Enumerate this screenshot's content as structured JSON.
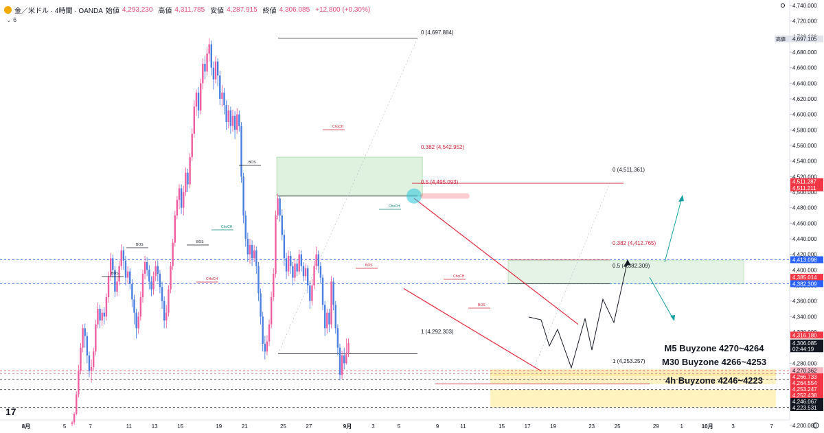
{
  "header": {
    "symbol": "金／米ドル · 4時間 · OANDA",
    "open_label": "始値",
    "open_value": "4,293.230",
    "high_label": "高値",
    "high_value": "4,311.785",
    "low_label": "安値",
    "low_value": "4,287.915",
    "close_label": "終値",
    "close_value": "4,306.085",
    "change": "+12.800 (+0.30%)",
    "sub_count": "6"
  },
  "logo_text": "17",
  "chart_data": {
    "type": "candlestick",
    "y_range": [
      4190,
      4745
    ],
    "price_ticks": [
      "4,740.000",
      "4,720.000",
      "4,700.000",
      "4,680.000",
      "4,660.000",
      "4,640.000",
      "4,620.000",
      "4,600.000",
      "4,580.000",
      "4,560.000",
      "4,540.000",
      "4,520.000",
      "4,500.000",
      "4,480.000",
      "4,460.000",
      "4,440.000",
      "4,420.000",
      "4,400.000",
      "4,380.000",
      "4,360.000",
      "4,340.000",
      "4,320.000",
      "4,300.000",
      "4,280.000",
      "4,200.000"
    ],
    "time_ticks": [
      {
        "label": "8月",
        "bar": 0
      },
      {
        "label": "5",
        "bar": 18
      },
      {
        "label": "7",
        "bar": 30
      },
      {
        "label": "11",
        "bar": 48
      },
      {
        "label": "13",
        "bar": 60
      },
      {
        "label": "15",
        "bar": 72
      },
      {
        "label": "19",
        "bar": 90
      },
      {
        "label": "21",
        "bar": 102
      },
      {
        "label": "25",
        "bar": 120
      },
      {
        "label": "27",
        "bar": 132
      },
      {
        "label": "9月",
        "bar": 150
      },
      {
        "label": "3",
        "bar": 162
      },
      {
        "label": "5",
        "bar": 174
      },
      {
        "label": "9",
        "bar": 192
      },
      {
        "label": "11",
        "bar": 204
      },
      {
        "label": "15",
        "bar": 222
      },
      {
        "label": "17",
        "bar": 234
      },
      {
        "label": "19",
        "bar": 246
      },
      {
        "label": "23",
        "bar": 264
      },
      {
        "label": "25",
        "bar": 276
      },
      {
        "label": "29",
        "bar": 294
      },
      {
        "label": "1",
        "bar": 306
      },
      {
        "label": "10月",
        "bar": 318
      },
      {
        "label": "3",
        "bar": 330
      },
      {
        "label": "7",
        "bar": 348
      }
    ],
    "price_tags": [
      {
        "label": "高値",
        "value": "4,697.105",
        "price": 4697.1,
        "bg": "#e0e3eb",
        "fg": "#131722"
      },
      {
        "value": "4,511.287",
        "price": 4513.5,
        "bg": "#f23645",
        "fg": "#ffffff"
      },
      {
        "value": "4,511.211",
        "price": 4505.5,
        "bg": "#f23645",
        "fg": "#ffffff"
      },
      {
        "value": "4,413.098",
        "price": 4413.1,
        "bg": "#2962ff",
        "fg": "#ffffff"
      },
      {
        "value": "4,400.000",
        "price": 4400,
        "bg": "#ffffff",
        "fg": "#131722"
      },
      {
        "value": "4,385.014",
        "price": 4390.5,
        "bg": "#f23645",
        "fg": "#ffffff"
      },
      {
        "value": "4,382.309",
        "price": 4382.3,
        "bg": "#2962ff",
        "fg": "#ffffff"
      },
      {
        "value": "4,316.180",
        "price": 4316.2,
        "bg": "#f23645",
        "fg": "#ffffff"
      },
      {
        "value": "4,306.085",
        "price": 4306.1,
        "bg": "#131722",
        "fg": "#ffffff"
      },
      {
        "value": "02:44:19",
        "price": 4298.6,
        "bg": "#131722",
        "fg": "#ffffff"
      },
      {
        "value": "4,270.362",
        "price": 4270.4,
        "bg": "#f7b8c4",
        "fg": "#131722"
      },
      {
        "value": "4,266.733",
        "price": 4262.5,
        "bg": "#f23645",
        "fg": "#ffffff"
      },
      {
        "value": "4,264.554",
        "price": 4254.6,
        "bg": "#f23645",
        "fg": "#ffffff"
      },
      {
        "value": "4,253.247",
        "price": 4246.6,
        "bg": "#f23645",
        "fg": "#ffffff"
      },
      {
        "value": "4,252.438",
        "price": 4238.7,
        "bg": "#f23645",
        "fg": "#ffffff"
      },
      {
        "value": "4,246.067",
        "price": 4230.8,
        "bg": "#131722",
        "fg": "#ffffff"
      },
      {
        "value": "4,223.531",
        "price": 4222.9,
        "bg": "#131722",
        "fg": "#ffffff"
      }
    ],
    "fib_labels": [
      {
        "text": "0 (4,697.884)",
        "bar": 118,
        "price": 4697.9
      },
      {
        "text": "0.382 (4,542.952)",
        "bar": 118,
        "price": 4542.95
      },
      {
        "text": "0.5 (4,495.093)",
        "bar": 118,
        "price": 4495.1
      },
      {
        "text": "1 (4,292.303)",
        "bar": 118,
        "price": 4292.3
      },
      {
        "text": "0 (4,511.361)",
        "bar": 278,
        "price": 4511.4
      },
      {
        "text": "0.382 (4,412.765)",
        "bar": 278,
        "price": 4412.8
      },
      {
        "text": "0.5 (4,382.309)",
        "bar": 278,
        "price": 4382.3
      },
      {
        "text": "1 (4,253.257)",
        "bar": 278,
        "price": 4253.3
      }
    ],
    "zone_labels": [
      "M5 Buyzone 4270~4264",
      "M30 Buyzone 4266~4253",
      "4h Buyzone 4246~4223"
    ],
    "structure_labels": [
      "BOS",
      "BOS",
      "ChoCH",
      "BOS",
      "BOS",
      "ChoCH",
      "ChoCH",
      "BOS",
      "ChoCH",
      "BOS",
      "CHoCH"
    ],
    "candles": [
      {
        "o": 4202,
        "c": 4204,
        "h": 4206,
        "l": 4199
      },
      {
        "o": 4204,
        "c": 4215,
        "h": 4217,
        "l": 4201
      },
      {
        "o": 4215,
        "c": 4240,
        "h": 4244,
        "l": 4213
      },
      {
        "o": 4240,
        "c": 4270,
        "h": 4278,
        "l": 4236
      },
      {
        "o": 4270,
        "c": 4300,
        "h": 4306,
        "l": 4266
      },
      {
        "o": 4300,
        "c": 4325,
        "h": 4330,
        "l": 4294
      },
      {
        "o": 4325,
        "c": 4315,
        "h": 4331,
        "l": 4300
      },
      {
        "o": 4315,
        "c": 4290,
        "h": 4320,
        "l": 4280
      },
      {
        "o": 4290,
        "c": 4270,
        "h": 4295,
        "l": 4262
      },
      {
        "o": 4270,
        "c": 4275,
        "h": 4285,
        "l": 4255
      },
      {
        "o": 4275,
        "c": 4295,
        "h": 4300,
        "l": 4270
      },
      {
        "o": 4295,
        "c": 4330,
        "h": 4336,
        "l": 4290
      },
      {
        "o": 4330,
        "c": 4350,
        "h": 4358,
        "l": 4325
      },
      {
        "o": 4350,
        "c": 4335,
        "h": 4355,
        "l": 4325
      },
      {
        "o": 4335,
        "c": 4345,
        "h": 4350,
        "l": 4328
      },
      {
        "o": 4345,
        "c": 4340,
        "h": 4352,
        "l": 4330
      },
      {
        "o": 4340,
        "c": 4365,
        "h": 4370,
        "l": 4335
      },
      {
        "o": 4365,
        "c": 4392,
        "h": 4398,
        "l": 4358
      },
      {
        "o": 4392,
        "c": 4415,
        "h": 4422,
        "l": 4386
      },
      {
        "o": 4415,
        "c": 4400,
        "h": 4420,
        "l": 4390
      },
      {
        "o": 4400,
        "c": 4372,
        "h": 4405,
        "l": 4365
      },
      {
        "o": 4372,
        "c": 4385,
        "h": 4392,
        "l": 4366
      },
      {
        "o": 4385,
        "c": 4405,
        "h": 4412,
        "l": 4380
      },
      {
        "o": 4405,
        "c": 4425,
        "h": 4433,
        "l": 4400
      },
      {
        "o": 4425,
        "c": 4412,
        "h": 4430,
        "l": 4400
      },
      {
        "o": 4412,
        "c": 4390,
        "h": 4418,
        "l": 4380
      },
      {
        "o": 4390,
        "c": 4398,
        "h": 4405,
        "l": 4382
      },
      {
        "o": 4398,
        "c": 4382,
        "h": 4402,
        "l": 4375
      },
      {
        "o": 4382,
        "c": 4362,
        "h": 4388,
        "l": 4352
      },
      {
        "o": 4362,
        "c": 4345,
        "h": 4368,
        "l": 4330
      },
      {
        "o": 4345,
        "c": 4325,
        "h": 4350,
        "l": 4312
      },
      {
        "o": 4325,
        "c": 4340,
        "h": 4346,
        "l": 4318
      },
      {
        "o": 4340,
        "c": 4365,
        "h": 4372,
        "l": 4335
      },
      {
        "o": 4365,
        "c": 4395,
        "h": 4400,
        "l": 4358
      },
      {
        "o": 4395,
        "c": 4410,
        "h": 4418,
        "l": 4388
      },
      {
        "o": 4410,
        "c": 4400,
        "h": 4416,
        "l": 4392
      },
      {
        "o": 4400,
        "c": 4385,
        "h": 4406,
        "l": 4375
      },
      {
        "o": 4385,
        "c": 4375,
        "h": 4392,
        "l": 4366
      },
      {
        "o": 4375,
        "c": 4392,
        "h": 4398,
        "l": 4368
      },
      {
        "o": 4392,
        "c": 4405,
        "h": 4412,
        "l": 4386
      },
      {
        "o": 4405,
        "c": 4395,
        "h": 4412,
        "l": 4385
      },
      {
        "o": 4395,
        "c": 4378,
        "h": 4400,
        "l": 4370
      },
      {
        "o": 4378,
        "c": 4360,
        "h": 4385,
        "l": 4350
      },
      {
        "o": 4360,
        "c": 4335,
        "h": 4366,
        "l": 4325
      },
      {
        "o": 4335,
        "c": 4345,
        "h": 4355,
        "l": 4325
      },
      {
        "o": 4345,
        "c": 4375,
        "h": 4380,
        "l": 4340
      },
      {
        "o": 4375,
        "c": 4405,
        "h": 4410,
        "l": 4370
      },
      {
        "o": 4405,
        "c": 4435,
        "h": 4440,
        "l": 4400
      },
      {
        "o": 4435,
        "c": 4470,
        "h": 4476,
        "l": 4430
      },
      {
        "o": 4470,
        "c": 4490,
        "h": 4495,
        "l": 4465
      },
      {
        "o": 4490,
        "c": 4505,
        "h": 4510,
        "l": 4478
      },
      {
        "o": 4505,
        "c": 4480,
        "h": 4510,
        "l": 4472
      },
      {
        "o": 4480,
        "c": 4500,
        "h": 4508,
        "l": 4470
      },
      {
        "o": 4500,
        "c": 4525,
        "h": 4532,
        "l": 4495
      },
      {
        "o": 4525,
        "c": 4510,
        "h": 4530,
        "l": 4500
      },
      {
        "o": 4510,
        "c": 4545,
        "h": 4550,
        "l": 4505
      },
      {
        "o": 4545,
        "c": 4575,
        "h": 4582,
        "l": 4540
      },
      {
        "o": 4575,
        "c": 4610,
        "h": 4618,
        "l": 4570
      },
      {
        "o": 4610,
        "c": 4628,
        "h": 4632,
        "l": 4598
      },
      {
        "o": 4628,
        "c": 4605,
        "h": 4635,
        "l": 4595
      },
      {
        "o": 4605,
        "c": 4640,
        "h": 4646,
        "l": 4600
      },
      {
        "o": 4640,
        "c": 4665,
        "h": 4672,
        "l": 4632
      },
      {
        "o": 4665,
        "c": 4655,
        "h": 4675,
        "l": 4645
      },
      {
        "o": 4655,
        "c": 4678,
        "h": 4685,
        "l": 4650
      },
      {
        "o": 4678,
        "c": 4690,
        "h": 4697.9,
        "l": 4668
      },
      {
        "o": 4690,
        "c": 4660,
        "h": 4695,
        "l": 4650
      },
      {
        "o": 4660,
        "c": 4645,
        "h": 4668,
        "l": 4632
      },
      {
        "o": 4645,
        "c": 4668,
        "h": 4675,
        "l": 4640
      },
      {
        "o": 4668,
        "c": 4650,
        "h": 4672,
        "l": 4636
      },
      {
        "o": 4650,
        "c": 4620,
        "h": 4656,
        "l": 4612
      },
      {
        "o": 4620,
        "c": 4628,
        "h": 4638,
        "l": 4610
      },
      {
        "o": 4628,
        "c": 4612,
        "h": 4634,
        "l": 4600
      },
      {
        "o": 4612,
        "c": 4590,
        "h": 4618,
        "l": 4580
      },
      {
        "o": 4590,
        "c": 4605,
        "h": 4612,
        "l": 4582
      },
      {
        "o": 4605,
        "c": 4585,
        "h": 4610,
        "l": 4575
      },
      {
        "o": 4585,
        "c": 4598,
        "h": 4606,
        "l": 4578
      },
      {
        "o": 4598,
        "c": 4580,
        "h": 4604,
        "l": 4568
      },
      {
        "o": 4580,
        "c": 4600,
        "h": 4608,
        "l": 4575
      },
      {
        "o": 4600,
        "c": 4585,
        "h": 4605,
        "l": 4578
      },
      {
        "o": 4585,
        "c": 4520,
        "h": 4590,
        "l": 4512
      },
      {
        "o": 4520,
        "c": 4470,
        "h": 4525,
        "l": 4460
      },
      {
        "o": 4470,
        "c": 4440,
        "h": 4476,
        "l": 4430
      },
      {
        "o": 4440,
        "c": 4420,
        "h": 4448,
        "l": 4410
      },
      {
        "o": 4420,
        "c": 4432,
        "h": 4440,
        "l": 4408
      },
      {
        "o": 4432,
        "c": 4415,
        "h": 4438,
        "l": 4405
      },
      {
        "o": 4415,
        "c": 4425,
        "h": 4432,
        "l": 4410
      },
      {
        "o": 4425,
        "c": 4405,
        "h": 4430,
        "l": 4395
      },
      {
        "o": 4405,
        "c": 4370,
        "h": 4410,
        "l": 4360
      },
      {
        "o": 4370,
        "c": 4340,
        "h": 4376,
        "l": 4330
      },
      {
        "o": 4340,
        "c": 4305,
        "h": 4346,
        "l": 4295
      },
      {
        "o": 4305,
        "c": 4295,
        "h": 4315,
        "l": 4285
      },
      {
        "o": 4295,
        "c": 4308,
        "h": 4316,
        "l": 4290
      },
      {
        "o": 4308,
        "c": 4330,
        "h": 4336,
        "l": 4302
      },
      {
        "o": 4330,
        "c": 4365,
        "h": 4372,
        "l": 4325
      },
      {
        "o": 4365,
        "c": 4395,
        "h": 4402,
        "l": 4360
      },
      {
        "o": 4395,
        "c": 4470,
        "h": 4476,
        "l": 4390
      },
      {
        "o": 4470,
        "c": 4492,
        "h": 4498,
        "l": 4465
      },
      {
        "o": 4492,
        "c": 4470,
        "h": 4495,
        "l": 4462
      },
      {
        "o": 4470,
        "c": 4445,
        "h": 4478,
        "l": 4438
      },
      {
        "o": 4445,
        "c": 4415,
        "h": 4452,
        "l": 4405
      },
      {
        "o": 4415,
        "c": 4398,
        "h": 4422,
        "l": 4388
      },
      {
        "o": 4398,
        "c": 4418,
        "h": 4425,
        "l": 4392
      },
      {
        "o": 4418,
        "c": 4405,
        "h": 4424,
        "l": 4395
      },
      {
        "o": 4405,
        "c": 4390,
        "h": 4410,
        "l": 4380
      },
      {
        "o": 4390,
        "c": 4408,
        "h": 4415,
        "l": 4385
      },
      {
        "o": 4408,
        "c": 4398,
        "h": 4414,
        "l": 4392
      },
      {
        "o": 4398,
        "c": 4420,
        "h": 4426,
        "l": 4394
      },
      {
        "o": 4420,
        "c": 4405,
        "h": 4425,
        "l": 4398
      },
      {
        "o": 4405,
        "c": 4392,
        "h": 4410,
        "l": 4385
      },
      {
        "o": 4392,
        "c": 4402,
        "h": 4408,
        "l": 4386
      },
      {
        "o": 4402,
        "c": 4380,
        "h": 4406,
        "l": 4370
      },
      {
        "o": 4380,
        "c": 4360,
        "h": 4386,
        "l": 4350
      },
      {
        "o": 4360,
        "c": 4380,
        "h": 4388,
        "l": 4354
      },
      {
        "o": 4380,
        "c": 4405,
        "h": 4412,
        "l": 4375
      },
      {
        "o": 4405,
        "c": 4420,
        "h": 4430,
        "l": 4400
      },
      {
        "o": 4420,
        "c": 4405,
        "h": 4425,
        "l": 4396
      },
      {
        "o": 4405,
        "c": 4390,
        "h": 4410,
        "l": 4382
      },
      {
        "o": 4390,
        "c": 4355,
        "h": 4394,
        "l": 4348
      },
      {
        "o": 4355,
        "c": 4325,
        "h": 4360,
        "l": 4315
      },
      {
        "o": 4325,
        "c": 4345,
        "h": 4350,
        "l": 4318
      },
      {
        "o": 4345,
        "c": 4330,
        "h": 4350,
        "l": 4320
      },
      {
        "o": 4330,
        "c": 4385,
        "h": 4392,
        "l": 4325
      },
      {
        "o": 4385,
        "c": 4355,
        "h": 4390,
        "l": 4348
      },
      {
        "o": 4355,
        "c": 4325,
        "h": 4360,
        "l": 4318
      },
      {
        "o": 4325,
        "c": 4300,
        "h": 4330,
        "l": 4290
      },
      {
        "o": 4300,
        "c": 4265,
        "h": 4305,
        "l": 4258
      },
      {
        "o": 4265,
        "c": 4290,
        "h": 4296,
        "l": 4260
      },
      {
        "o": 4290,
        "c": 4280,
        "h": 4300,
        "l": 4272
      },
      {
        "o": 4280,
        "c": 4293,
        "h": 4311.8,
        "l": 4278
      },
      {
        "o": 4293.2,
        "c": 4306.1,
        "h": 4311.8,
        "l": 4287.9
      }
    ]
  }
}
